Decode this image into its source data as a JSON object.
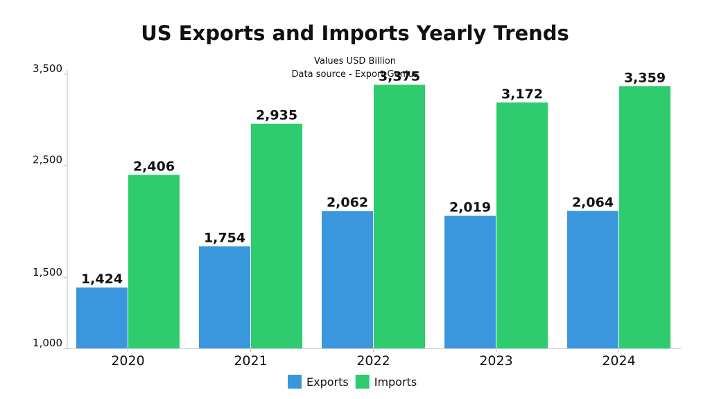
{
  "chart_data": {
    "type": "bar",
    "title": "US Exports and Imports Yearly Trends",
    "subtitle_lines": [
      "Values USD Billion",
      "Data source - Export Genius"
    ],
    "categories": [
      "2020",
      "2021",
      "2022",
      "2023",
      "2024"
    ],
    "series": [
      {
        "name": "Exports",
        "color": "#3b97dd",
        "values": [
          1424,
          1754,
          2062,
          2019,
          2064
        ],
        "labels": [
          "1,424",
          "1,754",
          "2,062",
          "2,019",
          "2,064"
        ]
      },
      {
        "name": "Imports",
        "color": "#2ecc6f",
        "values": [
          2406,
          2935,
          3375,
          3172,
          3359
        ],
        "labels": [
          "2,406",
          "2,935",
          "3,375",
          "3,172",
          "3,359"
        ]
      }
    ],
    "y_ticks": [
      1000,
      1500,
      2500,
      3500
    ],
    "y_tick_labels": [
      "1,000",
      "1,500",
      "2,500",
      "3,500"
    ],
    "ylim": [
      1000,
      3500
    ],
    "y_scale": "sqrt",
    "grid": false,
    "legend_position": "bottom-center"
  }
}
